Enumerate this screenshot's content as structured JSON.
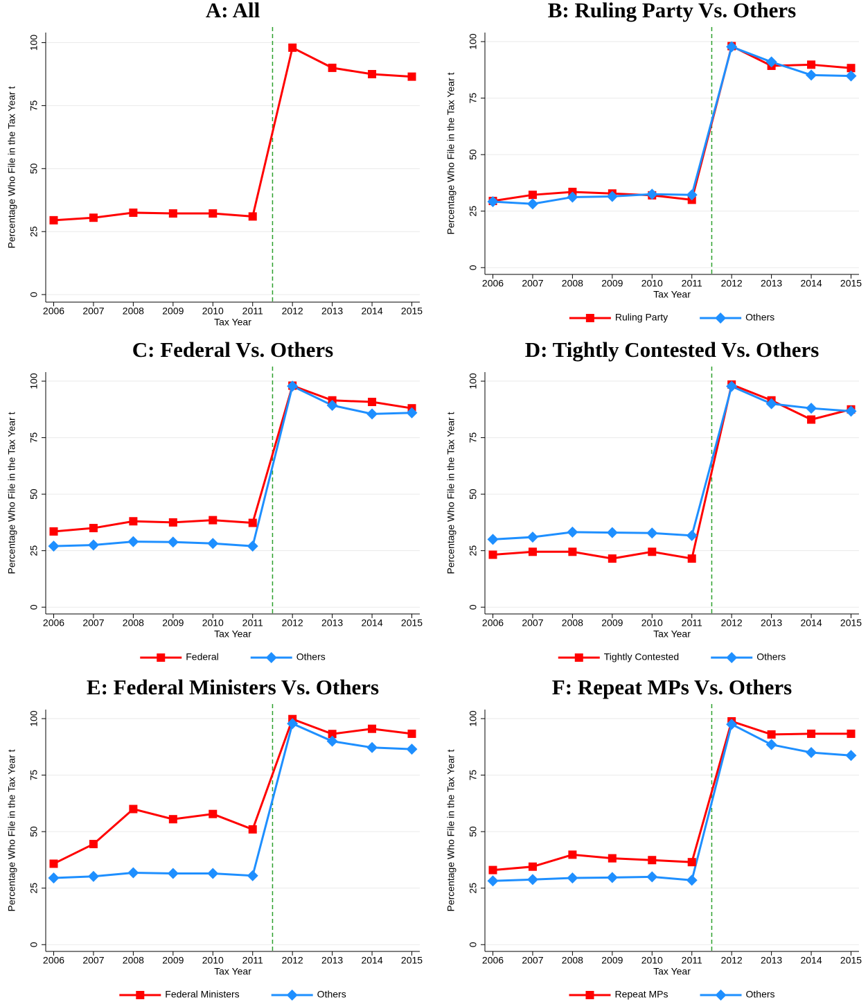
{
  "chart_data": [
    {
      "type": "line",
      "title": "A: All",
      "xlabel": "Tax Year",
      "ylabel": "Percentage Who File in the Tax Year t",
      "x": [
        2006,
        2007,
        2008,
        2009,
        2010,
        2011,
        2012,
        2013,
        2014,
        2015
      ],
      "values": [
        29.5,
        30.5,
        32.5,
        32.2,
        32.2,
        31,
        98,
        90,
        87.5,
        86.5
      ],
      "color": "#ff0000",
      "marker": "square",
      "xlim": [
        2005.8,
        2015.2
      ],
      "xticks": [
        2006,
        2007,
        2008,
        2009,
        2010,
        2011,
        2012,
        2013,
        2014,
        2015
      ],
      "ylim": [
        -3,
        104
      ],
      "yticks": [
        0,
        25,
        50,
        75,
        100
      ],
      "grid": true,
      "vline": 2011.5,
      "vline_color": "#2ca02c"
    },
    {
      "type": "line",
      "title": "B: Ruling Party Vs. Others",
      "xlabel": "Tax Year",
      "ylabel": "Percentage Who File in the Tax Year t",
      "x": [
        2006,
        2007,
        2008,
        2009,
        2010,
        2011,
        2012,
        2013,
        2014,
        2015
      ],
      "series": [
        {
          "name": "Ruling Party",
          "color": "#ff0000",
          "marker": "square",
          "values": [
            29.5,
            32.2,
            33.5,
            32.8,
            32,
            30,
            98,
            89.3,
            89.8,
            88.3
          ]
        },
        {
          "name": "Others",
          "color": "#1e8fff",
          "marker": "diamond",
          "values": [
            29.2,
            28.2,
            31.2,
            31.5,
            32.5,
            32.2,
            97.7,
            91,
            85.2,
            84.8
          ]
        }
      ],
      "xlim": [
        2005.8,
        2015.2
      ],
      "xticks": [
        2006,
        2007,
        2008,
        2009,
        2010,
        2011,
        2012,
        2013,
        2014,
        2015
      ],
      "ylim": [
        -3,
        104
      ],
      "yticks": [
        0,
        25,
        50,
        75,
        100
      ],
      "grid": true,
      "vline": 2011.5,
      "vline_color": "#2ca02c"
    },
    {
      "type": "line",
      "title": "C: Federal Vs. Others",
      "xlabel": "Tax Year",
      "ylabel": "Percentage Who File in the Tax Year t",
      "x": [
        2006,
        2007,
        2008,
        2009,
        2010,
        2011,
        2012,
        2013,
        2014,
        2015
      ],
      "series": [
        {
          "name": "Federal",
          "color": "#ff0000",
          "marker": "square",
          "values": [
            33.5,
            35,
            38,
            37.5,
            38.5,
            37.3,
            98,
            91.5,
            90.8,
            88
          ]
        },
        {
          "name": "Others",
          "color": "#1e8fff",
          "marker": "diamond",
          "values": [
            27,
            27.5,
            29,
            28.8,
            28.2,
            27,
            97.8,
            89.3,
            85.5,
            86
          ]
        }
      ],
      "xlim": [
        2005.8,
        2015.2
      ],
      "xticks": [
        2006,
        2007,
        2008,
        2009,
        2010,
        2011,
        2012,
        2013,
        2014,
        2015
      ],
      "ylim": [
        -3,
        104
      ],
      "yticks": [
        0,
        25,
        50,
        75,
        100
      ],
      "grid": true,
      "vline": 2011.5,
      "vline_color": "#2ca02c"
    },
    {
      "type": "line",
      "title": "D: Tightly Contested Vs. Others",
      "xlabel": "Tax Year",
      "ylabel": "Percentage Who File in the Tax Year t",
      "x": [
        2006,
        2007,
        2008,
        2009,
        2010,
        2011,
        2012,
        2013,
        2014,
        2015
      ],
      "series": [
        {
          "name": "Tightly Contested",
          "color": "#ff0000",
          "marker": "square",
          "values": [
            23.2,
            24.5,
            24.5,
            21.5,
            24.5,
            21.5,
            98.5,
            91.5,
            83,
            87.5
          ]
        },
        {
          "name": "Others",
          "color": "#1e8fff",
          "marker": "diamond",
          "values": [
            30,
            31,
            33.2,
            33,
            32.8,
            31.7,
            97.7,
            90,
            88,
            86.7
          ]
        }
      ],
      "xlim": [
        2005.8,
        2015.2
      ],
      "xticks": [
        2006,
        2007,
        2008,
        2009,
        2010,
        2011,
        2012,
        2013,
        2014,
        2015
      ],
      "ylim": [
        -3,
        104
      ],
      "yticks": [
        0,
        25,
        50,
        75,
        100
      ],
      "grid": true,
      "vline": 2011.5,
      "vline_color": "#2ca02c"
    },
    {
      "type": "line",
      "title": "E: Federal Ministers Vs. Others",
      "xlabel": "Tax Year",
      "ylabel": "Percentage Who File in the Tax Year t",
      "x": [
        2006,
        2007,
        2008,
        2009,
        2010,
        2011,
        2012,
        2013,
        2014,
        2015
      ],
      "series": [
        {
          "name": "Federal Ministers",
          "color": "#ff0000",
          "marker": "square",
          "values": [
            35.8,
            44.5,
            60,
            55.5,
            57.8,
            51,
            99.8,
            93.2,
            95.5,
            93.3
          ]
        },
        {
          "name": "Others",
          "color": "#1e8fff",
          "marker": "diamond",
          "values": [
            29.5,
            30.2,
            31.8,
            31.5,
            31.5,
            30.5,
            97.8,
            90,
            87.2,
            86.5
          ]
        }
      ],
      "xlim": [
        2005.8,
        2015.2
      ],
      "xticks": [
        2006,
        2007,
        2008,
        2009,
        2010,
        2011,
        2012,
        2013,
        2014,
        2015
      ],
      "ylim": [
        -3,
        104
      ],
      "yticks": [
        0,
        25,
        50,
        75,
        100
      ],
      "grid": true,
      "vline": 2011.5,
      "vline_color": "#2ca02c"
    },
    {
      "type": "line",
      "title": "F: Repeat MPs Vs. Others",
      "xlabel": "Tax Year",
      "ylabel": "Percentage Who File in the Tax Year t",
      "x": [
        2006,
        2007,
        2008,
        2009,
        2010,
        2011,
        2012,
        2013,
        2014,
        2015
      ],
      "series": [
        {
          "name": "Repeat MPs",
          "color": "#ff0000",
          "marker": "square",
          "values": [
            33,
            34.5,
            39.8,
            38.2,
            37.4,
            36.5,
            98.8,
            93,
            93.3,
            93.3
          ]
        },
        {
          "name": "Others",
          "color": "#1e8fff",
          "marker": "diamond",
          "values": [
            28.2,
            28.8,
            29.5,
            29.7,
            30,
            28.5,
            97.5,
            88.5,
            85,
            83.7
          ]
        }
      ],
      "xlim": [
        2005.8,
        2015.2
      ],
      "xticks": [
        2006,
        2007,
        2008,
        2009,
        2010,
        2011,
        2012,
        2013,
        2014,
        2015
      ],
      "ylim": [
        -3,
        104
      ],
      "yticks": [
        0,
        25,
        50,
        75,
        100
      ],
      "grid": true,
      "vline": 2011.5,
      "vline_color": "#2ca02c"
    }
  ]
}
